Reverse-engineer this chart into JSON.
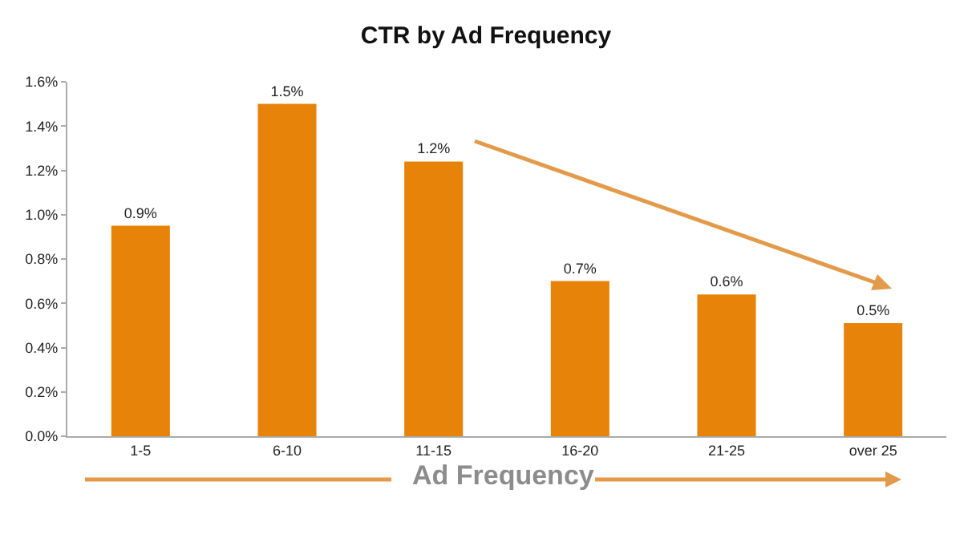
{
  "chart_data": {
    "type": "bar",
    "title": "CTR by Ad Frequency",
    "xlabel": "Ad Frequency",
    "categories": [
      "1-5",
      "6-10",
      "11-15",
      "16-20",
      "21-25",
      "over 25"
    ],
    "values": [
      0.95,
      1.5,
      1.24,
      0.7,
      0.64,
      0.51
    ],
    "value_labels": [
      "0.9%",
      "1.5%",
      "1.2%",
      "0.7%",
      "0.6%",
      "0.5%"
    ],
    "color": "#e8830a",
    "ylim": [
      0,
      1.6
    ],
    "yticks": [
      {
        "value": 0,
        "label": "0.0%"
      },
      {
        "value": 0.2,
        "label": "0.2%"
      },
      {
        "value": 0.4,
        "label": "0.4%"
      },
      {
        "value": 0.6,
        "label": "0.6%"
      },
      {
        "value": 0.8,
        "label": "0.8%"
      },
      {
        "value": 1.0,
        "label": "1.0%"
      },
      {
        "value": 1.2,
        "label": "1.2%"
      },
      {
        "value": 1.4,
        "label": "1.4%"
      },
      {
        "value": 1.6,
        "label": "1.6%"
      }
    ]
  }
}
